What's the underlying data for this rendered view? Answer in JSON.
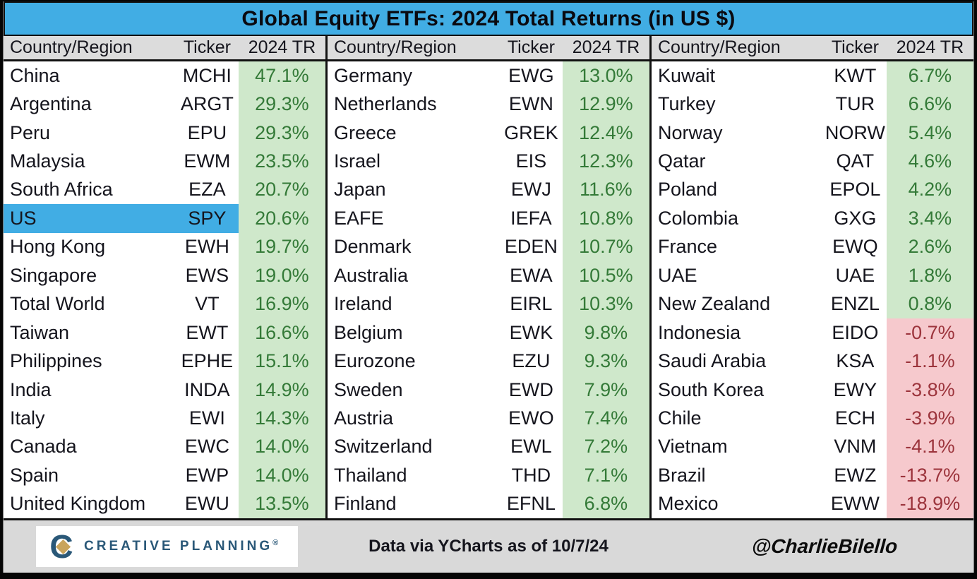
{
  "title": "Global Equity ETFs: 2024 Total Returns (in US $)",
  "colors": {
    "title_bg": "#41ade4",
    "highlight_bg": "#41ade4",
    "positive_bg": "#cfe8cb",
    "positive_text": "#347a38",
    "negative_bg": "#f6c9cd",
    "negative_text": "#9c343c",
    "header_bg": "#dcdcdc",
    "footer_bg": "#d9d9d9",
    "logo_navy": "#2a5878",
    "logo_gold": "#c9a45c"
  },
  "table_header": {
    "country": "Country/Region",
    "ticker": "Ticker",
    "tr": "2024 TR"
  },
  "chart_data": {
    "type": "table",
    "title": "Global Equity ETFs: 2024 Total Returns (in US $)",
    "columns": [
      "Country/Region",
      "Ticker",
      "2024 TR"
    ],
    "highlighted_row": "US",
    "groups": [
      {
        "rows": [
          {
            "country": "China",
            "ticker": "MCHI",
            "tr": "47.1%"
          },
          {
            "country": "Argentina",
            "ticker": "ARGT",
            "tr": "29.3%"
          },
          {
            "country": "Peru",
            "ticker": "EPU",
            "tr": "29.3%"
          },
          {
            "country": "Malaysia",
            "ticker": "EWM",
            "tr": "23.5%"
          },
          {
            "country": "South Africa",
            "ticker": "EZA",
            "tr": "20.7%"
          },
          {
            "country": "US",
            "ticker": "SPY",
            "tr": "20.6%",
            "highlight": true
          },
          {
            "country": "Hong Kong",
            "ticker": "EWH",
            "tr": "19.7%"
          },
          {
            "country": "Singapore",
            "ticker": "EWS",
            "tr": "19.0%"
          },
          {
            "country": "Total World",
            "ticker": "VT",
            "tr": "16.9%"
          },
          {
            "country": "Taiwan",
            "ticker": "EWT",
            "tr": "16.6%"
          },
          {
            "country": "Philippines",
            "ticker": "EPHE",
            "tr": "15.1%"
          },
          {
            "country": "India",
            "ticker": "INDA",
            "tr": "14.9%"
          },
          {
            "country": "Italy",
            "ticker": "EWI",
            "tr": "14.3%"
          },
          {
            "country": "Canada",
            "ticker": "EWC",
            "tr": "14.0%"
          },
          {
            "country": "Spain",
            "ticker": "EWP",
            "tr": "14.0%"
          },
          {
            "country": "United Kingdom",
            "ticker": "EWU",
            "tr": "13.5%"
          }
        ]
      },
      {
        "rows": [
          {
            "country": "Germany",
            "ticker": "EWG",
            "tr": "13.0%"
          },
          {
            "country": "Netherlands",
            "ticker": "EWN",
            "tr": "12.9%"
          },
          {
            "country": "Greece",
            "ticker": "GREK",
            "tr": "12.4%"
          },
          {
            "country": "Israel",
            "ticker": "EIS",
            "tr": "12.3%"
          },
          {
            "country": "Japan",
            "ticker": "EWJ",
            "tr": "11.6%"
          },
          {
            "country": "EAFE",
            "ticker": "IEFA",
            "tr": "10.8%"
          },
          {
            "country": "Denmark",
            "ticker": "EDEN",
            "tr": "10.7%"
          },
          {
            "country": "Australia",
            "ticker": "EWA",
            "tr": "10.5%"
          },
          {
            "country": "Ireland",
            "ticker": "EIRL",
            "tr": "10.3%"
          },
          {
            "country": "Belgium",
            "ticker": "EWK",
            "tr": "9.8%"
          },
          {
            "country": "Eurozone",
            "ticker": "EZU",
            "tr": "9.3%"
          },
          {
            "country": "Sweden",
            "ticker": "EWD",
            "tr": "7.9%"
          },
          {
            "country": "Austria",
            "ticker": "EWO",
            "tr": "7.4%"
          },
          {
            "country": "Switzerland",
            "ticker": "EWL",
            "tr": "7.2%"
          },
          {
            "country": "Thailand",
            "ticker": "THD",
            "tr": "7.1%"
          },
          {
            "country": "Finland",
            "ticker": "EFNL",
            "tr": "6.8%"
          }
        ]
      },
      {
        "rows": [
          {
            "country": "Kuwait",
            "ticker": "KWT",
            "tr": "6.7%"
          },
          {
            "country": "Turkey",
            "ticker": "TUR",
            "tr": "6.6%"
          },
          {
            "country": "Norway",
            "ticker": "NORW",
            "tr": "5.4%"
          },
          {
            "country": "Qatar",
            "ticker": "QAT",
            "tr": "4.6%"
          },
          {
            "country": "Poland",
            "ticker": "EPOL",
            "tr": "4.2%"
          },
          {
            "country": "Colombia",
            "ticker": "GXG",
            "tr": "3.4%"
          },
          {
            "country": "France",
            "ticker": "EWQ",
            "tr": "2.6%"
          },
          {
            "country": "UAE",
            "ticker": "UAE",
            "tr": "1.8%"
          },
          {
            "country": "New Zealand",
            "ticker": "ENZL",
            "tr": "0.8%"
          },
          {
            "country": "Indonesia",
            "ticker": "EIDO",
            "tr": "-0.7%"
          },
          {
            "country": "Saudi Arabia",
            "ticker": "KSA",
            "tr": "-1.1%"
          },
          {
            "country": "South Korea",
            "ticker": "EWY",
            "tr": "-3.8%"
          },
          {
            "country": "Chile",
            "ticker": "ECH",
            "tr": "-3.9%"
          },
          {
            "country": "Vietnam",
            "ticker": "VNM",
            "tr": "-4.1%"
          },
          {
            "country": "Brazil",
            "ticker": "EWZ",
            "tr": "-13.7%"
          },
          {
            "country": "Mexico",
            "ticker": "EWW",
            "tr": "-18.9%"
          }
        ]
      }
    ]
  },
  "footer": {
    "logo_text": "CREATIVE PLANNING",
    "logo_mark": "®",
    "logo_c": "C",
    "source": "Data via YCharts as of 10/7/24",
    "signature": "@CharlieBilello"
  }
}
